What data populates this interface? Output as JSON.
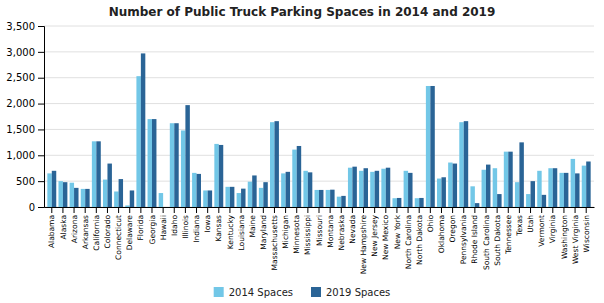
{
  "chart_data": {
    "type": "bar",
    "title": "Number of Public Truck Parking Spaces in 2014 and 2019",
    "categories": [
      "Alabama",
      "Alaska",
      "Arizona",
      "Arkansas",
      "California",
      "Colorado",
      "Connecticut",
      "Delaware",
      "Florida",
      "Georgia",
      "Hawaii",
      "Idaho",
      "Illinois",
      "Indiana",
      "Iowa",
      "Kansas",
      "Kentucky",
      "Louisiana",
      "Maine",
      "Maryland",
      "Massachusetts",
      "Michigan",
      "Minnesota",
      "Mississippi",
      "Missouri",
      "Montana",
      "Nebraska",
      "Nevada",
      "New Hampshire",
      "New Jersey",
      "New Mexico",
      "New York",
      "North Carolina",
      "North Dakota",
      "Ohio",
      "Oklahoma",
      "Oregon",
      "Pennsylvania",
      "Rhode Island",
      "South Carolina",
      "South Dakota",
      "Tennessee",
      "Texas",
      "Utah",
      "Vermont",
      "Virginia",
      "Washington",
      "West Virginia",
      "Wisconsin"
    ],
    "series": [
      {
        "name": "2014 Spaces",
        "color": "#72c7e7",
        "values": [
          650,
          500,
          470,
          350,
          1270,
          530,
          300,
          30,
          2530,
          1700,
          270,
          1620,
          1480,
          660,
          320,
          1220,
          390,
          270,
          490,
          370,
          1640,
          650,
          1110,
          700,
          330,
          330,
          200,
          760,
          700,
          680,
          740,
          170,
          700,
          170,
          2340,
          550,
          860,
          1640,
          400,
          720,
          750,
          1070,
          480,
          250,
          700,
          750,
          660,
          930,
          800
        ]
      },
      {
        "name": "2019 Spaces",
        "color": "#2a6496",
        "values": [
          700,
          480,
          370,
          350,
          1270,
          840,
          540,
          320,
          2970,
          1700,
          0,
          1620,
          1970,
          640,
          320,
          1200,
          390,
          355,
          610,
          480,
          1660,
          680,
          1180,
          670,
          330,
          335,
          215,
          780,
          750,
          700,
          760,
          175,
          660,
          175,
          2340,
          575,
          840,
          1660,
          75,
          820,
          250,
          1070,
          1250,
          500,
          235,
          750,
          660,
          650,
          880
        ]
      }
    ],
    "ylim": [
      0,
      3500
    ],
    "yticks": [
      0,
      500,
      {
        "value": 1000,
        "label": "1,000"
      },
      {
        "value": 1500,
        "label": "1,500"
      },
      {
        "value": 2000,
        "label": "2,000"
      },
      {
        "value": 2500,
        "label": "2,500"
      },
      {
        "value": 3000,
        "label": "3,000"
      },
      {
        "value": 3500,
        "label": "3,500"
      }
    ],
    "grid": true,
    "legend": "bottom"
  }
}
